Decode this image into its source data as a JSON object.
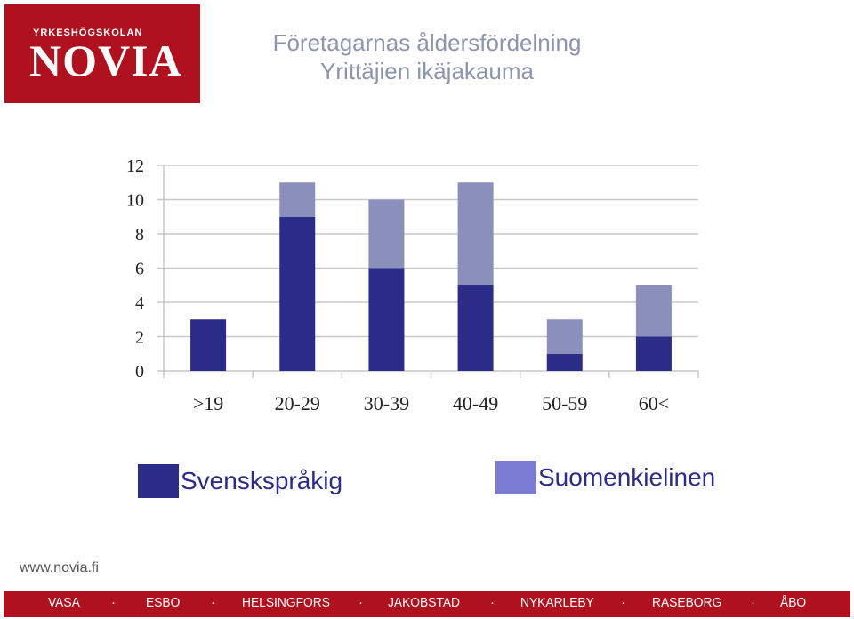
{
  "logo": {
    "small_text": "YRKESHÖGSKOLAN",
    "big_text": "NOVIA"
  },
  "title": {
    "line1": "Företagarnas åldersfördelning",
    "line2": "Yrittäjien ikäjakauma"
  },
  "chart_data": {
    "type": "bar",
    "stacked": true,
    "categories": [
      ">19",
      "20-29",
      "30-39",
      "40-49",
      "50-59",
      "60<"
    ],
    "series": [
      {
        "name": "Svenskspråkig",
        "values": [
          3,
          9,
          6,
          5,
          1,
          2
        ],
        "color": "#2b2c88"
      },
      {
        "name": "Suomenkielinen",
        "values": [
          0,
          2,
          4,
          6,
          2,
          3
        ],
        "color": "#8b8fbb"
      }
    ],
    "y_ticks": [
      "0",
      "2",
      "4",
      "6",
      "8",
      "10",
      "12"
    ],
    "ylim": [
      0,
      12
    ],
    "grid": true,
    "legend_position": "bottom"
  },
  "legend": {
    "items": [
      {
        "label": "Svenskspråkig",
        "color": "#2b2c88"
      },
      {
        "label": "Suomenkielinen",
        "color": "#7b7bd4"
      }
    ]
  },
  "url": "www.novia.fi",
  "footer": {
    "cities": [
      "VASA",
      "ESBO",
      "HELSINGFORS",
      "JAKOBSTAD",
      "NYKARLEBY",
      "RASEBORG",
      "ÅBO"
    ],
    "separator": "·"
  }
}
